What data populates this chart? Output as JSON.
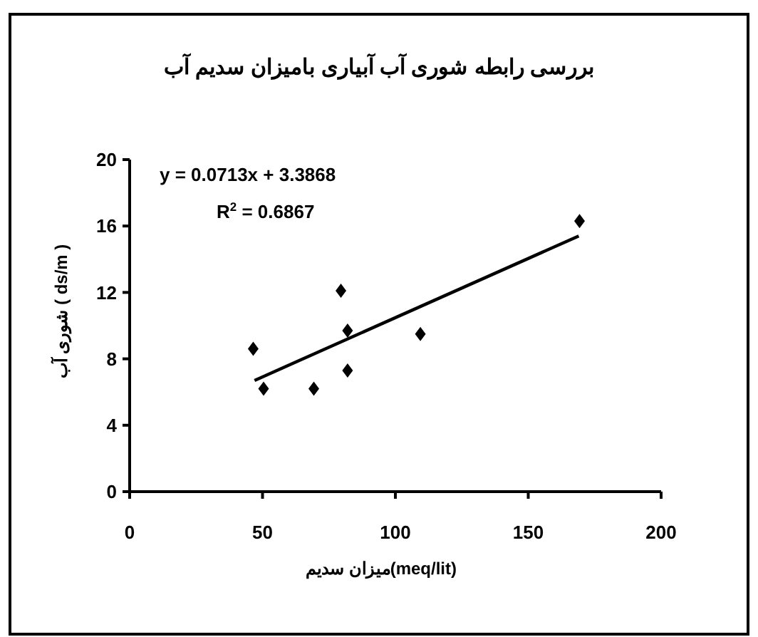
{
  "chart_data": {
    "type": "scatter",
    "title": "بررسی رابطه شوری آب آبیاری بامیزان سدیم آب",
    "xlabel": "میزان سدیم(meq/lit)",
    "ylabel": "شوری آب ( ds/m )",
    "xlim": [
      0,
      200
    ],
    "xticks": [
      0,
      50,
      100,
      150,
      200
    ],
    "ylim": [
      0,
      20
    ],
    "yticks": [
      0,
      4,
      8,
      12,
      16,
      20
    ],
    "grid": false,
    "marker": "diamond",
    "annotations": [
      "y = 0.0713x + 3.3868",
      "R$^{2}$ = 0.6867"
    ],
    "series": [
      {
        "color": "#000000",
        "x": [
          46.5,
          50.4,
          69.3,
          79.5,
          82,
          82,
          109.4,
          169.3
        ],
        "values": [
          8.6,
          6.2,
          6.2,
          12.1,
          9.7,
          7.3,
          9.5,
          16.3
        ]
      },
      {
        "type": "line",
        "color": "#000000",
        "line_style": "solid",
        "marker": "none",
        "x": [
          47,
          169
        ],
        "values": [
          6.7,
          15.4
        ]
      }
    ]
  }
}
